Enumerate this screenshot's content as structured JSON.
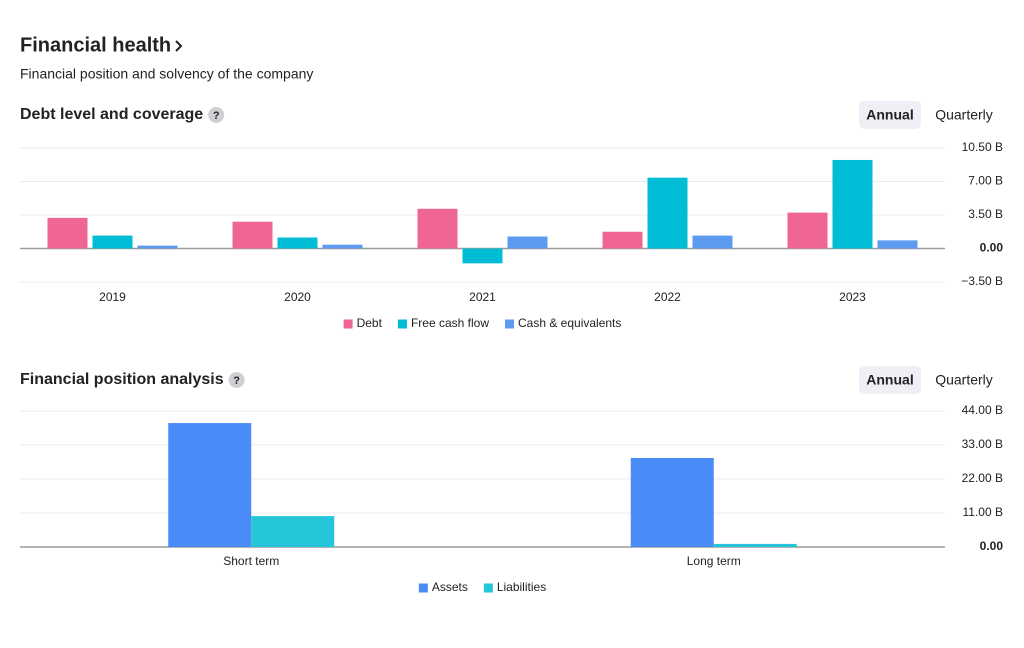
{
  "header": {
    "title": "Financial health",
    "subtitle": "Financial position and solvency of the company"
  },
  "chart_data": [
    {
      "type": "bar",
      "title": "Debt level and coverage",
      "toggle": [
        "Annual",
        "Quarterly"
      ],
      "categories": [
        "2019",
        "2020",
        "2021",
        "2022",
        "2023"
      ],
      "series": [
        {
          "name": "Debt",
          "color": "#ef6694",
          "values": [
            3.2,
            2.8,
            4.15,
            1.75,
            3.75
          ]
        },
        {
          "name": "Free cash flow",
          "color": "#00bcd4",
          "values": [
            1.35,
            1.15,
            -1.55,
            7.4,
            9.25
          ]
        },
        {
          "name": "Cash & equivalents",
          "color": "#5c9bf0",
          "values": [
            0.3,
            0.4,
            1.25,
            1.35,
            0.85
          ]
        }
      ],
      "ylim": [
        -3.5,
        10.5
      ],
      "yticks": [
        {
          "value": -3.5,
          "label": "−3.50 B"
        },
        {
          "value": 0,
          "label": "0.00"
        },
        {
          "value": 3.5,
          "label": "3.50 B"
        },
        {
          "value": 7,
          "label": "7.00 B"
        },
        {
          "value": 10.5,
          "label": "10.50 B"
        }
      ],
      "grid": true
    },
    {
      "type": "bar",
      "title": "Financial position analysis",
      "toggle": [
        "Annual",
        "Quarterly"
      ],
      "categories": [
        "Short term",
        "Long term"
      ],
      "series": [
        {
          "name": "Assets",
          "color": "#4a8cf7",
          "values": [
            40.1,
            28.8
          ]
        },
        {
          "name": "Liabilities",
          "color": "#26c6da",
          "values": [
            10.0,
            1.0
          ]
        }
      ],
      "ylim": [
        0,
        44
      ],
      "yticks": [
        {
          "value": 0,
          "label": "0.00"
        },
        {
          "value": 11,
          "label": "11.00 B"
        },
        {
          "value": 22,
          "label": "22.00 B"
        },
        {
          "value": 33,
          "label": "33.00 B"
        },
        {
          "value": 44,
          "label": "44.00 B"
        }
      ],
      "grid": true
    }
  ]
}
